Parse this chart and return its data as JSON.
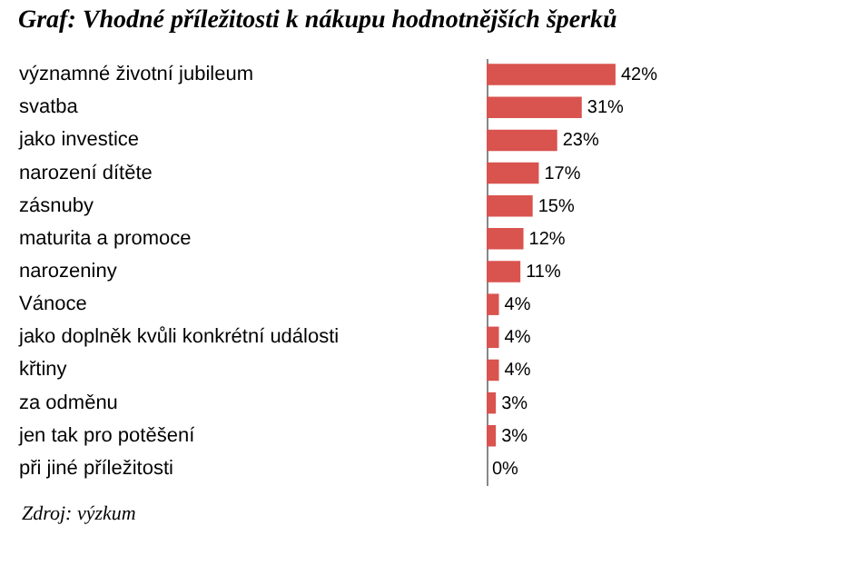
{
  "chart_data": {
    "type": "bar",
    "orientation": "horizontal",
    "title": "Graf: Vhodné příležitosti k nákupu hodnotnějších šperků",
    "categories": [
      "významné životní jubileum",
      "svatba",
      "jako investice",
      "narození dítěte",
      "zásnuby",
      "maturita a promoce",
      "narozeniny",
      "Vánoce",
      "jako doplněk kvůli konkrétní události",
      "křtiny",
      "za odměnu",
      "jen tak pro potěšení",
      "při jiné příležitosti"
    ],
    "values": [
      42,
      31,
      23,
      17,
      15,
      12,
      11,
      4,
      4,
      4,
      3,
      3,
      0
    ],
    "value_labels": [
      "42%",
      "31%",
      "23%",
      "17%",
      "15%",
      "12%",
      "11%",
      "4%",
      "4%",
      "4%",
      "3%",
      "3%",
      "0%"
    ],
    "color": "#d9534f",
    "annotations": [
      "Zdroj: výzkum"
    ]
  }
}
